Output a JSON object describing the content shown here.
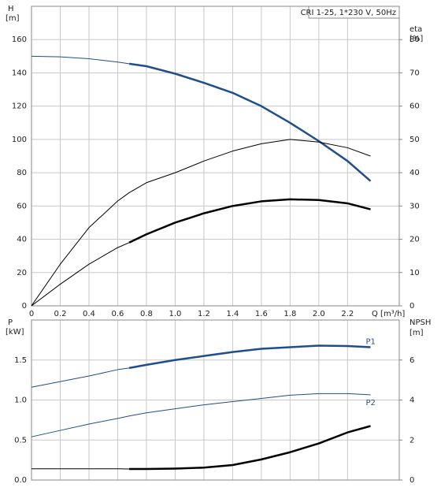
{
  "chart_data": [
    {
      "type": "line",
      "title": "CRI 1-25, 1*230 V, 50Hz",
      "x_label": "Q [m³/h]",
      "y_label": "H",
      "y_unit": "[m]",
      "y2_label": "eta",
      "y2_unit": "[%]",
      "x": [
        0,
        0.2,
        0.4,
        0.6,
        0.68,
        0.8,
        1.0,
        1.2,
        1.4,
        1.6,
        1.8,
        2.0,
        2.2,
        2.36
      ],
      "xlim": [
        0,
        2.56
      ],
      "xticks": [
        0,
        0.2,
        0.4,
        0.6,
        0.8,
        {
          "value": 1,
          "label": "1.0"
        },
        1.2,
        1.4,
        1.6,
        1.8,
        {
          "value": 2,
          "label": "2.0"
        },
        2.2
      ],
      "ylim": [
        0,
        180
      ],
      "yticks": [
        0,
        20,
        40,
        60,
        80,
        100,
        120,
        140,
        160
      ],
      "y2lim": [
        0,
        90
      ],
      "y2ticks": [
        0,
        10,
        20,
        30,
        40,
        50,
        60,
        70,
        80
      ],
      "grid": true,
      "series": [
        {
          "color": "#1f4e8c",
          "width": 1,
          "values": [
            150,
            149.6,
            148.5,
            146.5,
            145.5,
            null,
            null,
            null,
            null,
            null,
            null,
            null,
            null,
            null
          ]
        },
        {
          "color": "#1f4e8c",
          "width": 2.5,
          "values": [
            null,
            null,
            null,
            null,
            145.5,
            144,
            139.5,
            134,
            128,
            120,
            110,
            99,
            87,
            75
          ]
        },
        {
          "color": "#000000",
          "width": 1,
          "axis": "y2",
          "values": [
            0,
            12.5,
            23.5,
            31.5,
            34,
            37,
            40,
            43.5,
            46.5,
            48.7,
            50,
            49.2,
            47.5,
            45
          ]
        },
        {
          "color": "#000000",
          "width": 1,
          "axis": "y2",
          "values": [
            0,
            6.5,
            12.5,
            17.5,
            19,
            null,
            null,
            null,
            null,
            null,
            null,
            null,
            null,
            null
          ]
        },
        {
          "color": "#000000",
          "width": 2.5,
          "axis": "y2",
          "values": [
            null,
            null,
            null,
            null,
            19,
            21.5,
            25,
            27.8,
            30,
            31.4,
            32,
            31.8,
            30.8,
            29
          ]
        }
      ]
    },
    {
      "type": "line",
      "y_label": "P",
      "y_unit": "[kW]",
      "y2_label": "NPSH",
      "y2_unit": "[m]",
      "x": [
        0,
        0.2,
        0.4,
        0.6,
        0.68,
        0.8,
        1.0,
        1.2,
        1.4,
        1.6,
        1.8,
        2.0,
        2.2,
        2.36
      ],
      "xlim": [
        0,
        2.56
      ],
      "xticks": [
        0,
        0.2,
        0.4,
        0.6,
        0.8,
        1,
        1.2,
        1.4,
        1.6,
        1.8,
        2,
        2.2
      ],
      "ylim": [
        0,
        2.0
      ],
      "yticks": [
        {
          "value": 0,
          "label": "0.0"
        },
        0.5,
        {
          "value": 1,
          "label": "1.0"
        },
        1.5
      ],
      "y2lim": [
        0,
        8
      ],
      "y2ticks": [
        0,
        2,
        4,
        6
      ],
      "grid": true,
      "series": [
        {
          "color": "#1f4e8c",
          "width": 1,
          "values": [
            1.16,
            1.23,
            1.3,
            1.38,
            1.4,
            null,
            null,
            null,
            null,
            null,
            null,
            null,
            null,
            null
          ]
        },
        {
          "name": "P1",
          "color": "#1f4e8c",
          "width": 2.5,
          "values": [
            null,
            null,
            null,
            null,
            1.4,
            1.44,
            1.5,
            1.55,
            1.6,
            1.64,
            1.66,
            1.68,
            1.675,
            1.66
          ]
        },
        {
          "name": "P2",
          "color": "#1f4e8c",
          "width": 1,
          "values": [
            0.54,
            0.62,
            0.7,
            0.77,
            0.8,
            0.84,
            0.89,
            0.94,
            0.98,
            1.02,
            1.06,
            1.08,
            1.08,
            1.065
          ]
        },
        {
          "color": "#000000",
          "width": 1,
          "axis": "y2",
          "values": [
            0.56,
            0.56,
            0.56,
            0.56,
            0.55,
            null,
            null,
            null,
            null,
            null,
            null,
            null,
            null,
            null
          ]
        },
        {
          "color": "#000000",
          "width": 2.5,
          "axis": "y2",
          "values": [
            null,
            null,
            null,
            null,
            0.55,
            0.55,
            0.57,
            0.62,
            0.75,
            1.03,
            1.39,
            1.83,
            2.38,
            2.7
          ]
        }
      ]
    }
  ]
}
